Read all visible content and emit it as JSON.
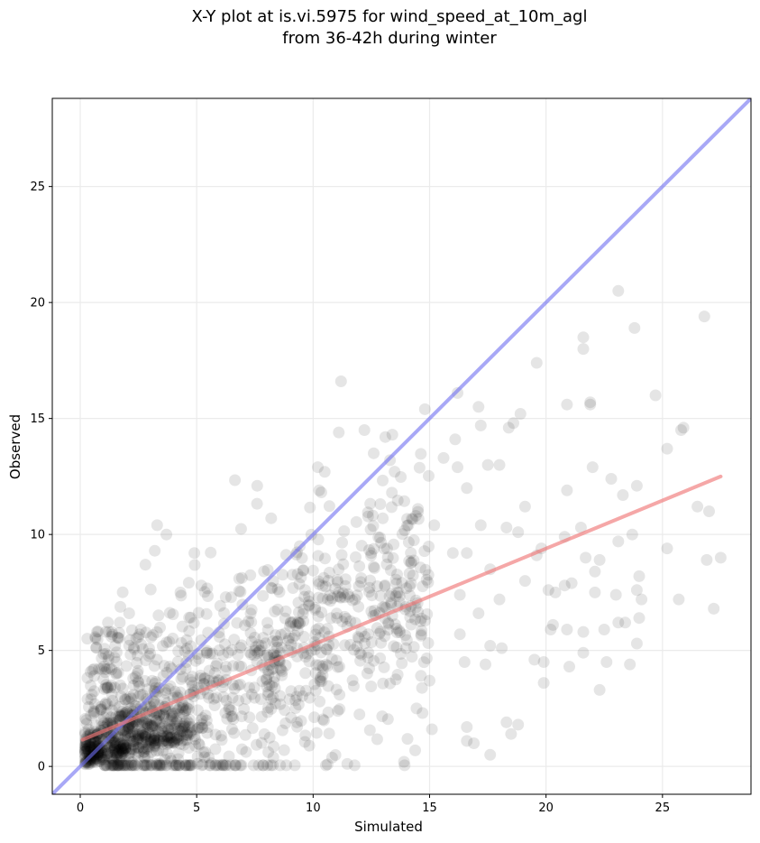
{
  "chart_data": {
    "type": "scatter",
    "title_lines": [
      "X-Y plot at is.vi.5975 for wind_speed_at_10m_agl",
      "from 36-42h during winter"
    ],
    "xlabel": "Simulated",
    "ylabel": "Observed",
    "xlim": [
      -1.2,
      28.8
    ],
    "ylim": [
      -1.2,
      28.8
    ],
    "xticks": [
      0,
      5,
      10,
      15,
      20,
      25
    ],
    "yticks": [
      0,
      5,
      10,
      15,
      20,
      25
    ],
    "grid": true,
    "colors": {
      "points": "#000000",
      "identity_line": "#6e6ef0",
      "fit_line": "#f07878"
    },
    "identity_line": {
      "x": [
        -1.2,
        28.8
      ],
      "y": [
        -1.2,
        28.8
      ]
    },
    "fit_line": {
      "x": [
        0.1,
        27.5
      ],
      "y": [
        1.15,
        12.5
      ]
    },
    "points_visible": [
      [
        23.1,
        20.5
      ],
      [
        26.8,
        19.4
      ],
      [
        23.8,
        18.9
      ],
      [
        21.6,
        18.5
      ],
      [
        21.6,
        18.0
      ],
      [
        19.6,
        17.4
      ],
      [
        11.2,
        16.6
      ],
      [
        16.2,
        16.1
      ],
      [
        24.7,
        16.0
      ],
      [
        20.9,
        15.6
      ],
      [
        21.9,
        15.7
      ],
      [
        21.9,
        15.6
      ],
      [
        17.1,
        15.5
      ],
      [
        18.9,
        15.2
      ],
      [
        14.8,
        15.4
      ],
      [
        25.9,
        14.6
      ],
      [
        25.8,
        14.5
      ],
      [
        18.6,
        14.8
      ],
      [
        18.4,
        14.6
      ],
      [
        17.2,
        14.7
      ],
      [
        12.2,
        14.5
      ],
      [
        11.1,
        14.4
      ],
      [
        13.4,
        14.3
      ],
      [
        13.1,
        14.2
      ],
      [
        16.1,
        14.1
      ],
      [
        25.2,
        13.7
      ],
      [
        12.6,
        13.5
      ],
      [
        15.6,
        13.3
      ],
      [
        13.3,
        13.2
      ],
      [
        18.0,
        13.0
      ],
      [
        17.5,
        13.0
      ],
      [
        16.2,
        12.9
      ],
      [
        22.0,
        12.9
      ],
      [
        10.2,
        12.9
      ],
      [
        10.5,
        12.7
      ],
      [
        22.8,
        12.4
      ],
      [
        7.6,
        12.1
      ],
      [
        23.9,
        12.1
      ],
      [
        16.6,
        12.0
      ],
      [
        20.9,
        11.9
      ],
      [
        23.3,
        11.7
      ],
      [
        19.1,
        11.2
      ],
      [
        26.5,
        11.2
      ],
      [
        27.0,
        11.0
      ],
      [
        14.5,
        11.1
      ],
      [
        3.3,
        10.4
      ],
      [
        8.2,
        10.7
      ],
      [
        15.2,
        10.4
      ],
      [
        17.2,
        10.4
      ],
      [
        18.3,
        10.3
      ],
      [
        21.5,
        10.3
      ],
      [
        3.7,
        10.0
      ],
      [
        23.7,
        10.0
      ],
      [
        18.8,
        10.1
      ],
      [
        20.8,
        9.9
      ],
      [
        23.1,
        9.7
      ],
      [
        25.2,
        9.4
      ],
      [
        19.8,
        9.4
      ],
      [
        19.6,
        9.1
      ],
      [
        3.2,
        9.3
      ],
      [
        4.9,
        9.2
      ],
      [
        16.0,
        9.2
      ],
      [
        16.6,
        9.2
      ],
      [
        27.5,
        9.0
      ],
      [
        26.9,
        8.9
      ],
      [
        21.7,
        9.0
      ],
      [
        22.3,
        8.9
      ],
      [
        2.8,
        8.7
      ],
      [
        17.6,
        8.5
      ],
      [
        24.0,
        8.2
      ],
      [
        22.1,
        8.4
      ],
      [
        21.1,
        7.9
      ],
      [
        20.8,
        7.8
      ],
      [
        19.1,
        8.0
      ],
      [
        20.1,
        7.6
      ],
      [
        20.4,
        7.5
      ],
      [
        22.1,
        7.5
      ],
      [
        23.9,
        7.6
      ],
      [
        23.0,
        7.4
      ],
      [
        24.1,
        7.2
      ],
      [
        25.7,
        7.2
      ],
      [
        18.0,
        7.2
      ],
      [
        27.2,
        6.8
      ],
      [
        16.3,
        7.4
      ],
      [
        17.1,
        6.6
      ],
      [
        20.3,
        6.1
      ],
      [
        20.9,
        5.9
      ],
      [
        21.6,
        5.8
      ],
      [
        22.5,
        5.9
      ],
      [
        23.1,
        6.2
      ],
      [
        23.4,
        6.2
      ],
      [
        24.0,
        6.4
      ],
      [
        23.9,
        5.3
      ],
      [
        16.3,
        5.7
      ],
      [
        18.1,
        5.1
      ],
      [
        17.6,
        5.2
      ],
      [
        20.2,
        5.9
      ],
      [
        19.5,
        4.6
      ],
      [
        21.0,
        4.3
      ],
      [
        21.6,
        4.9
      ],
      [
        22.6,
        4.5
      ],
      [
        23.6,
        4.4
      ],
      [
        16.5,
        4.5
      ],
      [
        17.4,
        4.4
      ],
      [
        19.9,
        4.5
      ],
      [
        15.0,
        3.7
      ],
      [
        19.9,
        3.6
      ],
      [
        22.3,
        3.3
      ],
      [
        16.6,
        1.7
      ],
      [
        18.3,
        1.9
      ],
      [
        18.8,
        1.8
      ],
      [
        18.5,
        1.4
      ],
      [
        16.6,
        1.1
      ],
      [
        16.9,
        1.0
      ],
      [
        17.6,
        0.5
      ],
      [
        13.9,
        0.2
      ],
      [
        15.1,
        1.6
      ],
      [
        14.7,
        2.3
      ],
      [
        2.6,
        5.9
      ],
      [
        1.1,
        5.8
      ],
      [
        1.5,
        5.2
      ],
      [
        2.1,
        6.6
      ],
      [
        1.7,
        6.2
      ],
      [
        4.3,
        7.5
      ],
      [
        5.2,
        7.8
      ],
      [
        0.6,
        3.9
      ],
      [
        0.9,
        4.2
      ],
      [
        0.5,
        3.1
      ]
    ]
  }
}
